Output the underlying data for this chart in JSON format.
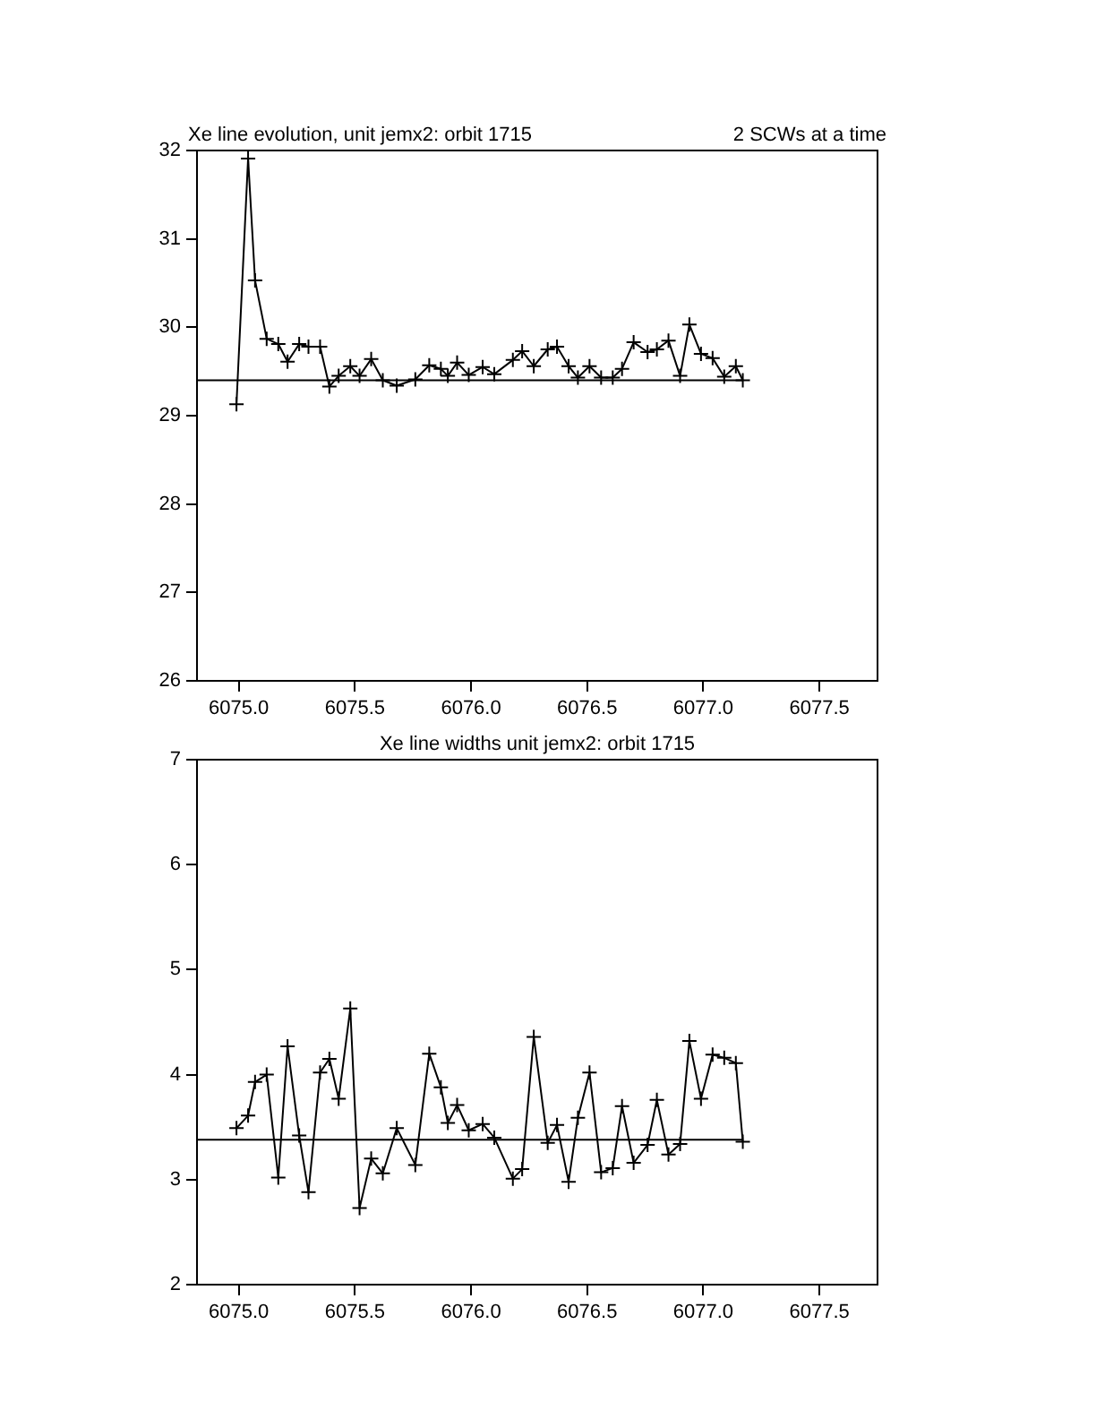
{
  "chart_data": [
    {
      "type": "line",
      "title": "Xe line evolution, unit jemx2: orbit 1715",
      "subtitle": "2 SCWs at a time",
      "xlim": [
        6074.82,
        6077.75
      ],
      "xticks": [
        {
          "value": 6075,
          "label": "6075.0"
        },
        6075.5,
        {
          "value": 6076,
          "label": "6076.0"
        },
        6076.5,
        {
          "value": 6077,
          "label": "6077.0"
        },
        6077.5
      ],
      "ylim": [
        26,
        32
      ],
      "yticks": [
        26,
        27,
        28,
        29,
        30,
        31,
        32
      ],
      "series": [
        {
          "marker": "cross",
          "color": "#000000",
          "x": [
            6074.99,
            6075.04,
            6075.07,
            6075.12,
            6075.17,
            6075.21,
            6075.26,
            6075.3,
            6075.35,
            6075.39,
            6075.43,
            6075.48,
            6075.52,
            6075.57,
            6075.62,
            6075.68,
            6075.76,
            6075.82,
            6075.87,
            6075.9,
            6075.94,
            6075.99,
            6076.05,
            6076.1,
            6076.18,
            6076.22,
            6076.27,
            6076.33,
            6076.37,
            6076.42,
            6076.46,
            6076.51,
            6076.56,
            6076.61,
            6076.65,
            6076.7,
            6076.76,
            6076.8,
            6076.85,
            6076.9,
            6076.94,
            6076.99,
            6077.04,
            6077.09,
            6077.14,
            6077.17
          ],
          "values": [
            29.13,
            31.91,
            30.53,
            29.87,
            29.81,
            29.61,
            29.81,
            29.78,
            29.78,
            29.33,
            29.45,
            29.56,
            29.45,
            29.64,
            29.4,
            29.34,
            29.41,
            29.57,
            29.53,
            29.45,
            29.6,
            29.46,
            29.55,
            29.47,
            29.63,
            29.73,
            29.56,
            29.75,
            29.78,
            29.56,
            29.43,
            29.56,
            29.43,
            29.43,
            29.53,
            29.83,
            29.72,
            29.75,
            29.85,
            29.45,
            30.03,
            29.7,
            29.65,
            29.44,
            29.56,
            29.4
          ]
        },
        {
          "marker": "none",
          "color": "#000000",
          "x": [
            6074.82,
            6077.17
          ],
          "values": [
            29.4,
            29.4
          ]
        }
      ]
    },
    {
      "type": "line",
      "title": "Xe line widths unit jemx2: orbit 1715",
      "xlim": [
        6074.82,
        6077.75
      ],
      "xticks": [
        {
          "value": 6075,
          "label": "6075.0"
        },
        6075.5,
        {
          "value": 6076,
          "label": "6076.0"
        },
        6076.5,
        {
          "value": 6077,
          "label": "6077.0"
        },
        6077.5
      ],
      "ylim": [
        2,
        7
      ],
      "yticks": [
        2,
        3,
        4,
        5,
        6,
        7
      ],
      "series": [
        {
          "marker": "cross",
          "color": "#000000",
          "x": [
            6074.99,
            6075.04,
            6075.07,
            6075.12,
            6075.17,
            6075.21,
            6075.26,
            6075.3,
            6075.35,
            6075.39,
            6075.43,
            6075.48,
            6075.52,
            6075.57,
            6075.62,
            6075.68,
            6075.76,
            6075.82,
            6075.87,
            6075.9,
            6075.94,
            6075.99,
            6076.05,
            6076.1,
            6076.18,
            6076.22,
            6076.27,
            6076.33,
            6076.37,
            6076.42,
            6076.46,
            6076.51,
            6076.56,
            6076.61,
            6076.65,
            6076.7,
            6076.76,
            6076.8,
            6076.85,
            6076.9,
            6076.94,
            6076.99,
            6077.04,
            6077.09,
            6077.14,
            6077.17
          ],
          "values": [
            3.49,
            3.61,
            3.93,
            4.0,
            3.02,
            4.27,
            3.42,
            2.88,
            4.02,
            4.15,
            3.77,
            4.63,
            2.73,
            3.2,
            3.06,
            3.49,
            3.14,
            4.2,
            3.88,
            3.54,
            3.71,
            3.47,
            3.53,
            3.4,
            3.01,
            3.1,
            4.36,
            3.35,
            3.52,
            2.98,
            3.59,
            4.02,
            3.07,
            3.11,
            3.7,
            3.16,
            3.33,
            3.76,
            3.24,
            3.34,
            4.32,
            3.77,
            4.19,
            4.16,
            4.11,
            3.36
          ]
        },
        {
          "marker": "none",
          "color": "#000000",
          "x": [
            6074.82,
            6077.17
          ],
          "values": [
            3.38,
            3.38
          ]
        }
      ]
    }
  ]
}
